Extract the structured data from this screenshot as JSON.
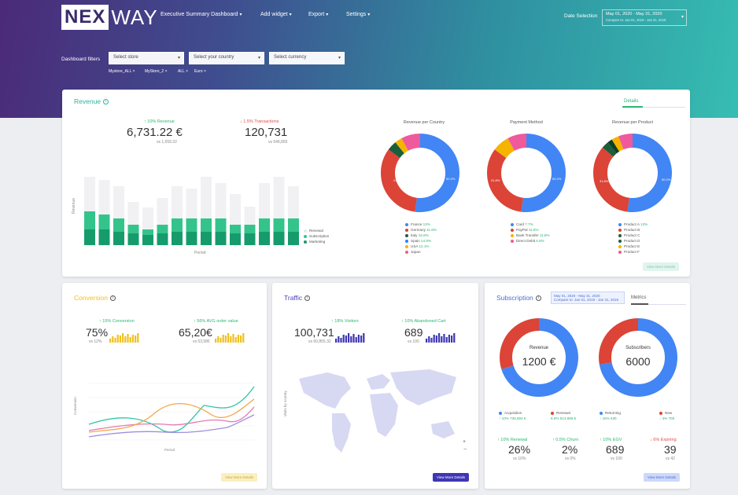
{
  "header": {
    "logo_a": "NEX",
    "logo_b": "WAY",
    "menu": [
      {
        "label": "Executive Summary Dashboard"
      },
      {
        "label": "Add widget"
      },
      {
        "label": "Export"
      },
      {
        "label": "Settings"
      }
    ],
    "date_label": "Date Selection",
    "date_range": "May 01, 2020 - May 31, 2020",
    "date_compare": "Compare to: Jan 01, 2019 - Jan 31, 2019",
    "filters_label": "Dashboard filters",
    "filters": [
      {
        "placeholder": "Select store"
      },
      {
        "placeholder": "Select your country"
      },
      {
        "placeholder": "Select currency"
      }
    ],
    "chips": [
      "Mystore_ALL ×",
      "MyStore_2 ×",
      "ALL ×",
      "Euro ×"
    ]
  },
  "revenue": {
    "title": "Revenue",
    "tab": "Details",
    "kpis": [
      {
        "change": "↑ 10% Revenue",
        "value": "6,731.22 €",
        "vs": "vs 1,659.32",
        "dir": "up"
      },
      {
        "change": "↓ 1.5% Transactions",
        "value": "120,731",
        "vs": "vs 546,855",
        "dir": "dn"
      }
    ],
    "ylabel": "Revenue",
    "xlabel": "Period",
    "legend": [
      "Renewal",
      "Subscription",
      "Marketing"
    ],
    "donut_titles": [
      "Revenue per Country",
      "Payment Method",
      "Revenue per Product"
    ],
    "donut1_legend": [
      {
        "label": "France",
        "pct": "13%",
        "color": "#4285f4"
      },
      {
        "label": "Germany",
        "pct": "11.8%",
        "color": "#db4437"
      },
      {
        "label": "Italy",
        "pct": "15.8%",
        "color": "#1b5e3b"
      },
      {
        "label": "Spain",
        "pct": "14.9%",
        "color": "#2a7fff"
      },
      {
        "label": "USA",
        "pct": "12.1%",
        "color": "#f4b400"
      },
      {
        "label": "Japan",
        "pct": "",
        "color": "#ee5a9b"
      }
    ],
    "donut2_legend": [
      {
        "label": "Card",
        "pct": "7.7%",
        "color": "#4285f4"
      },
      {
        "label": "PayPal",
        "pct": "11.8%",
        "color": "#db4437"
      },
      {
        "label": "Bank Transfer",
        "pct": "11.8%",
        "color": "#f4b400"
      },
      {
        "label": "Direct Debit",
        "pct": "5.8%",
        "color": "#ee5a9b"
      }
    ],
    "donut3_legend": [
      {
        "label": "Product A",
        "pct": "13%",
        "color": "#4285f4"
      },
      {
        "label": "Product B",
        "pct": "",
        "color": "#db4437"
      },
      {
        "label": "Product C",
        "pct": "",
        "color": "#1b5e3b"
      },
      {
        "label": "Product D",
        "pct": "",
        "color": "#1b5e3b"
      },
      {
        "label": "Product E",
        "pct": "",
        "color": "#f4b400"
      },
      {
        "label": "Product F",
        "pct": "",
        "color": "#ee5a9b"
      }
    ],
    "button": "View More Details"
  },
  "conversion": {
    "title": "Conversion",
    "kpis": [
      {
        "change": "↑ 15% Conversion",
        "value": "75%",
        "vs": "vs 12%"
      },
      {
        "change": "↑ 56% AVG order value",
        "value": "65,20€",
        "vs": "vs 53,58€"
      }
    ],
    "ylabel": "Conversion",
    "xlabel": "Period",
    "button": "View More Details"
  },
  "traffic": {
    "title": "Traffic",
    "kpis": [
      {
        "change": "↑ 18% Visitors",
        "value": "100,731",
        "vs": "vs 60,855.32"
      },
      {
        "change": "↑ 10% Abandoned Cart",
        "value": "689",
        "vs": "vs 100"
      }
    ],
    "ylabel": "Visits by country",
    "button": "View More Details"
  },
  "subscription": {
    "title": "Subscription",
    "date_range": "May 01, 2020 - May 31, 2020",
    "date_compare": "Compare to: Jan 01, 2019 - Jan 31, 2019",
    "tab": "Metrics",
    "donut1_label": "Revenue",
    "donut1_value": "1200 €",
    "donut2_label": "Subscribers",
    "donut2_value": "6000",
    "legend": [
      {
        "label": "Acquisition",
        "sub": "↑ 10% 735,694 €",
        "color": "#4285f4"
      },
      {
        "label": "Renewal",
        "sub": "6.8% 613,886 €",
        "color": "#db4437"
      },
      {
        "label": "Returning",
        "sub": "↑ 15% 635",
        "color": "#4285f4"
      },
      {
        "label": "New",
        "sub": "↓ 3% 705",
        "color": "#db4437"
      }
    ],
    "stats": [
      {
        "change": "↑ 10% Renewal",
        "value": "26%",
        "vs": "vs 10%"
      },
      {
        "change": "↑ 0.5% Churn",
        "value": "2%",
        "vs": "vs 0%"
      },
      {
        "change": "↑ 10% EGV",
        "value": "689",
        "vs": "vs 100"
      },
      {
        "change": "↓ 6% Expiring",
        "value": "39",
        "vs": "vs 42"
      }
    ],
    "button": "View More Details"
  }
}
